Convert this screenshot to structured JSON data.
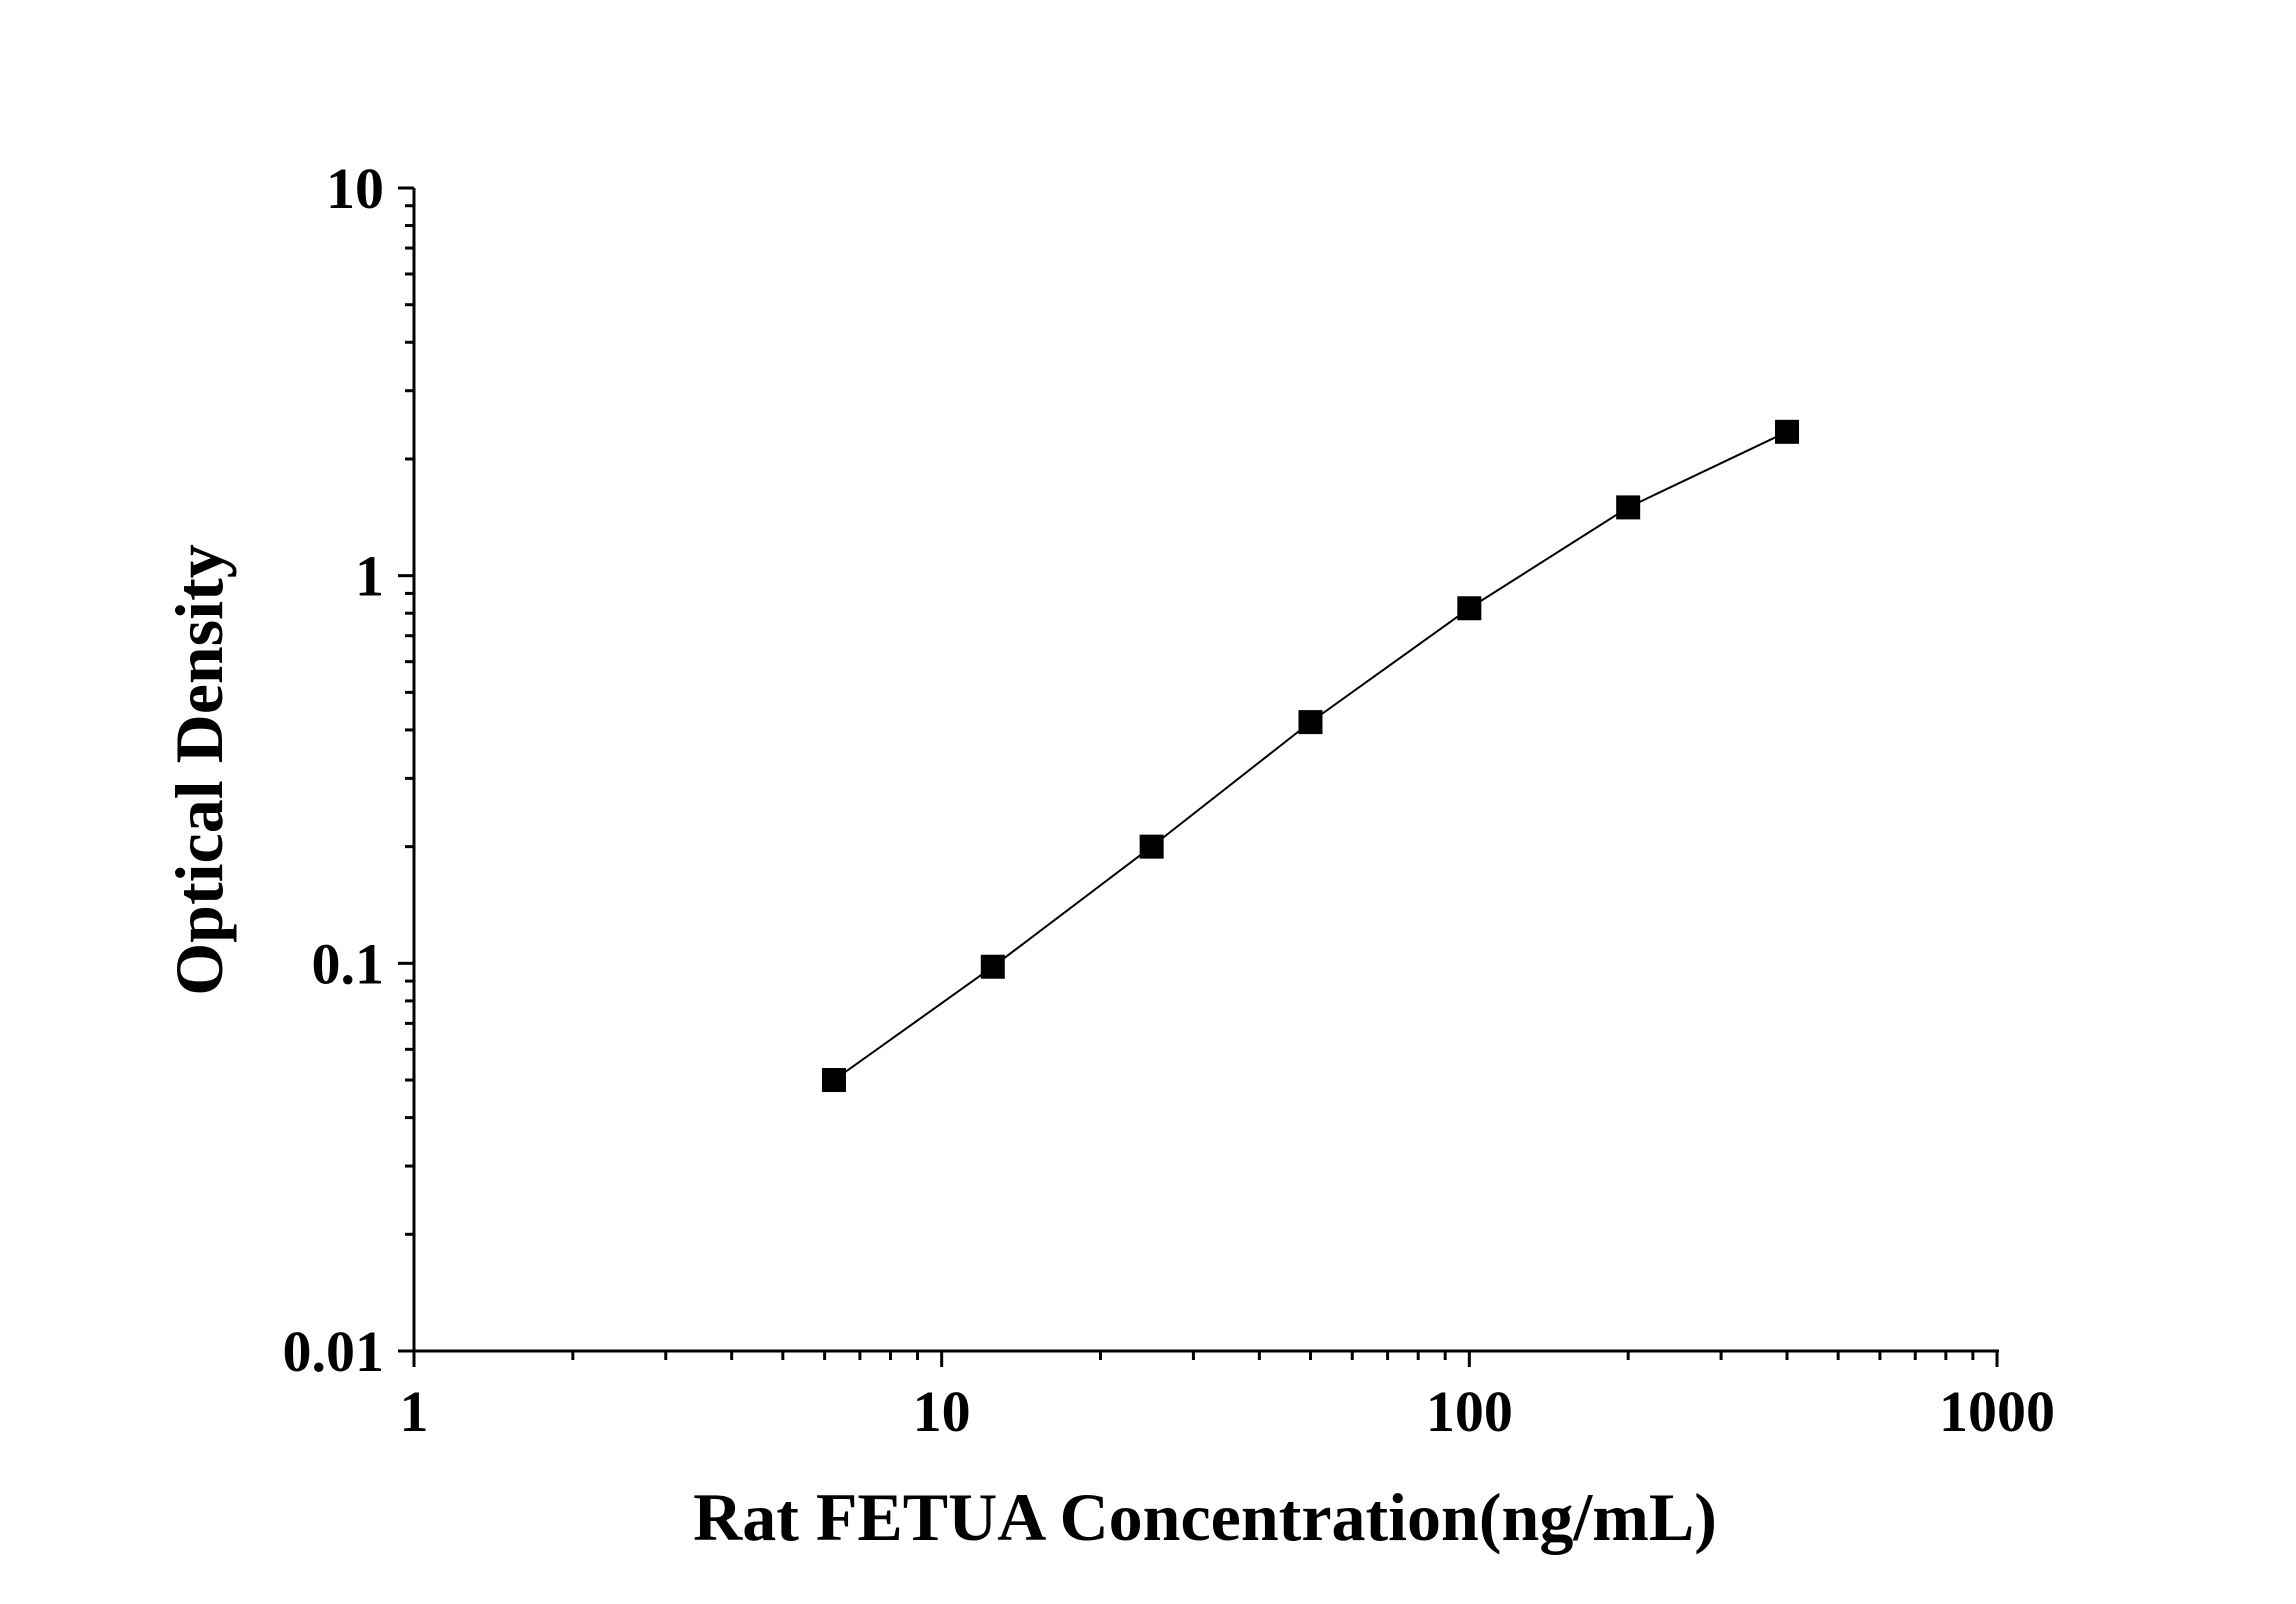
{
  "chart_data": {
    "type": "line",
    "title": "",
    "xlabel": "Rat FETUA Concentration(ng/mL)",
    "ylabel": "Optical Density",
    "x_scale": "log",
    "y_scale": "log",
    "xlim": [
      1,
      1000
    ],
    "ylim": [
      0.01,
      10
    ],
    "x_ticks": [
      "1",
      "10",
      "100",
      "1000"
    ],
    "y_ticks": [
      "0.01",
      "0.1",
      "1",
      "10"
    ],
    "grid": false,
    "marker": "square",
    "color": "#000000",
    "series": [
      {
        "x": [
          6.25,
          12.5,
          25,
          50,
          100,
          200,
          400
        ],
        "y": [
          0.05,
          0.098,
          0.2,
          0.419,
          0.824,
          1.5,
          2.35
        ]
      }
    ]
  }
}
